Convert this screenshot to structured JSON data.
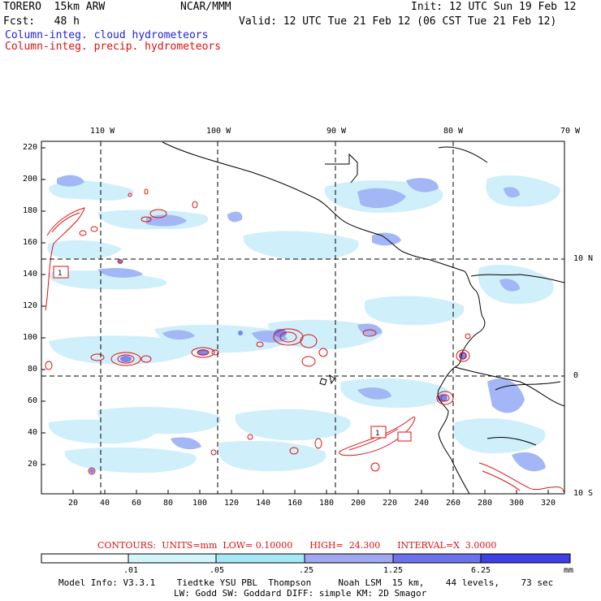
{
  "header": {
    "model": "TORERO  15km ARW",
    "org": "NCAR/MMM",
    "init": "Init: 12 UTC Sun 19 Feb 12",
    "fcst": "Fcst:   48 h",
    "valid": "Valid: 12 UTC Tue 21 Feb 12 (06 CST Tue 21 Feb 12)",
    "field_cloud": "Column-integ. cloud hydrometeors",
    "field_precip": "Column-integ. precip. hydrometeors"
  },
  "colors": {
    "cloud_text": "#2222dd",
    "precip_text": "#dd1111",
    "cloud_light": "#cfeffa",
    "cloud_mid": "#a3b6f5",
    "cloud_dark": "#7b86ee",
    "precip_line": "#e01010",
    "coast": "#000000"
  },
  "map": {
    "lon_labels": [
      "110 W",
      "100 W",
      "90 W",
      "80 W",
      "70 W"
    ],
    "lat_labels": [
      "10 N",
      "0",
      "10 S"
    ],
    "y_ticks": [
      "220",
      "200",
      "180",
      "160",
      "140",
      "120",
      "100",
      "80",
      "60",
      "40",
      "20"
    ],
    "x_ticks": [
      "20",
      "40",
      "60",
      "80",
      "100",
      "120",
      "140",
      "160",
      "180",
      "200",
      "220",
      "240",
      "260",
      "280",
      "300",
      "320"
    ],
    "box_label": "1"
  },
  "contours": {
    "caption": "CONTOURS:  UNITS=mm  LOW= 0.10000      HIGH=  24.300      INTERVAL=X  3.0000"
  },
  "colorbar": {
    "levels": [
      ".01",
      ".05",
      ".25",
      "1.25",
      "6.25"
    ],
    "unit": "mm",
    "colors": [
      "#ffffff",
      "#d2f6fb",
      "#a6e8f8",
      "#a0a8f0",
      "#6e72ea",
      "#3f3fe6",
      "#1010e6"
    ]
  },
  "footer": {
    "line1": "Model Info: V3.3.1    Tiedtke YSU PBL  Thompson     Noah LSM  15 km,    44 levels,    73 sec",
    "line2": "LW: Godd SW: Goddard DIFF: simple KM: 2D Smagor"
  }
}
